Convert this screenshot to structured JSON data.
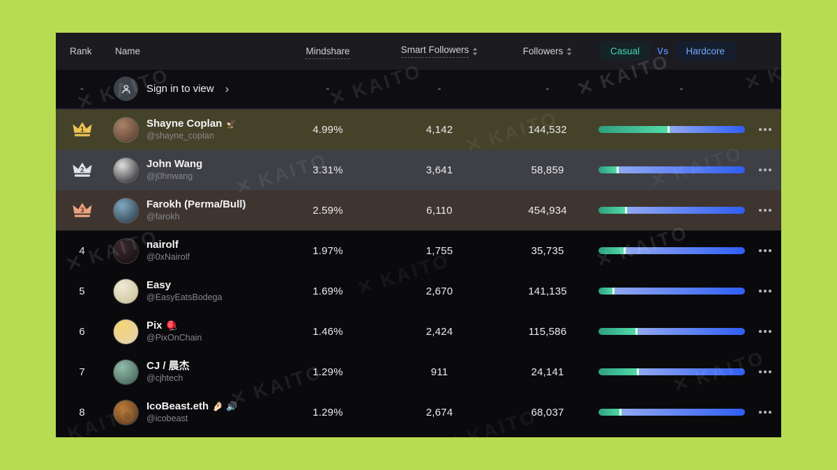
{
  "page": {
    "background": "#b8dc51",
    "panel_background": "#0a0a0d"
  },
  "watermark": {
    "logo": "✕",
    "text": "KAITO"
  },
  "colors": {
    "casual_accent": "#41d7b3",
    "hardcore_accent": "#77a9f7",
    "vs_accent": "#4d7ce0",
    "bar_green_start": "#2f9f81",
    "bar_green_end": "#52dca8",
    "bar_blue_start": "#8fa6f2",
    "bar_blue_end": "#2f5ef5",
    "rank1_tint": "#45422a",
    "rank2_tint": "#3f4046",
    "rank3_tint": "#3e3531"
  },
  "header": {
    "rank": "Rank",
    "name": "Name",
    "mindshare": "Mindshare",
    "smart_followers": "Smart Followers",
    "followers": "Followers",
    "casual": "Casual",
    "vs": "Vs",
    "hardcore": "Hardcore"
  },
  "signin": {
    "rank": "-",
    "label": "Sign in to view",
    "chevron": "›",
    "mindshare": "-",
    "smart_followers": "-",
    "followers": "-",
    "bar": "-"
  },
  "rows": [
    {
      "rank": "1",
      "crown": "gold",
      "name": "Shayne Coplan",
      "emoji": "🦅",
      "handle": "@shayne_coplan",
      "mindshare": "4.99%",
      "smart_followers": "4,142",
      "followers": "144,532",
      "casual_pct": 48,
      "tint": "#45422a",
      "avatar": [
        "#a98268",
        "#54392b"
      ]
    },
    {
      "rank": "2",
      "crown": "silver",
      "name": "John Wang",
      "emoji": "",
      "handle": "@j0hnwang",
      "mindshare": "3.31%",
      "smart_followers": "3,641",
      "followers": "58,859",
      "casual_pct": 13,
      "tint": "#3f4046",
      "avatar": [
        "#dedede",
        "#1e1e22"
      ]
    },
    {
      "rank": "3",
      "crown": "bronze",
      "name": "Farokh (Perma/Bull)",
      "emoji": "",
      "handle": "@farokh",
      "mindshare": "2.59%",
      "smart_followers": "6,110",
      "followers": "454,934",
      "casual_pct": 19,
      "tint": "#3e3531",
      "avatar": [
        "#7fa8c0",
        "#27333f"
      ]
    },
    {
      "rank": "4",
      "crown": null,
      "name": "nairolf",
      "emoji": "",
      "handle": "@0xNairolf",
      "mindshare": "1.97%",
      "smart_followers": "1,755",
      "followers": "35,735",
      "casual_pct": 18,
      "tint": null,
      "avatar": [
        "#3a282c",
        "#140f11"
      ]
    },
    {
      "rank": "5",
      "crown": null,
      "name": "Easy",
      "emoji": "",
      "handle": "@EasyEatsBodega",
      "mindshare": "1.69%",
      "smart_followers": "2,670",
      "followers": "141,135",
      "casual_pct": 10,
      "tint": null,
      "avatar": [
        "#f0ead6",
        "#c9bd96"
      ]
    },
    {
      "rank": "6",
      "crown": null,
      "name": "Pix",
      "emoji": "🪀",
      "handle": "@PixOnChain",
      "mindshare": "1.46%",
      "smart_followers": "2,424",
      "followers": "115,586",
      "casual_pct": 26,
      "tint": null,
      "avatar": [
        "#f2d575",
        "#e3d3b5"
      ]
    },
    {
      "rank": "7",
      "crown": null,
      "name": "CJ / 晨杰",
      "emoji": "",
      "handle": "@cjhtech",
      "mindshare": "1.29%",
      "smart_followers": "911",
      "followers": "24,141",
      "casual_pct": 27,
      "tint": null,
      "avatar": [
        "#93bcab",
        "#3c5a4e"
      ]
    },
    {
      "rank": "8",
      "crown": null,
      "name": "IcoBeast.eth",
      "emoji": "🤌🏻 🔊",
      "handle": "@icobeast",
      "mindshare": "1.29%",
      "smart_followers": "2,674",
      "followers": "68,037",
      "casual_pct": 15,
      "tint": null,
      "avatar": [
        "#b87a38",
        "#56351a"
      ]
    }
  ]
}
